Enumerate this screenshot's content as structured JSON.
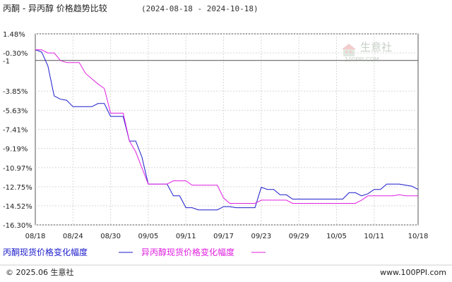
{
  "header": {
    "title": "丙酮 - 异丙醇 价格趋势比较",
    "range": "(2024-08-18 - 2024-10-18)"
  },
  "watermark": {
    "name": "生意社",
    "url": "100PPI.COM"
  },
  "footer": {
    "left": "© 2025.06 生意社",
    "right": "www.100PPI.com"
  },
  "colors": {
    "series1": "#1a1acc",
    "series2": "#e020e0",
    "max_label": "#e03030",
    "min_label": "#e03030",
    "grid": "#d8d8d8"
  },
  "chart_data": {
    "type": "line",
    "x_labels": [
      "08/18",
      "08/24",
      "08/30",
      "09/05",
      "09/11",
      "09/17",
      "09/23",
      "09/29",
      "10/05",
      "10/11",
      "10/18"
    ],
    "x_range": [
      "2024-08-18",
      "2024-10-18"
    ],
    "y_ticks": [
      "1.48%",
      "-0.30%",
      "-1",
      "-3.85%",
      "-5.63%",
      "-7.41%",
      "-9.19%",
      "-10.97%",
      "-12.75%",
      "-14.52%",
      "-16.30%"
    ],
    "y_tick_values": [
      1.48,
      -0.3,
      -1,
      -3.85,
      -5.63,
      -7.41,
      -9.19,
      -10.97,
      -12.75,
      -14.52,
      -16.3
    ],
    "ylim": [
      -16.3,
      1.48
    ],
    "reference_line": -1,
    "grid": true,
    "legend_placement": "bottom-left",
    "series": [
      {
        "name": "丙酮现货价格变化幅度",
        "points": [
          [
            "2024-08-18",
            0
          ],
          [
            "2024-08-19",
            -0.2
          ],
          [
            "2024-08-20",
            -1.5
          ],
          [
            "2024-08-21",
            -4.3
          ],
          [
            "2024-08-22",
            -4.6
          ],
          [
            "2024-08-23",
            -4.7
          ],
          [
            "2024-08-24",
            -5.3
          ],
          [
            "2024-08-25",
            -5.3
          ],
          [
            "2024-08-26",
            -5.3
          ],
          [
            "2024-08-27",
            -5.3
          ],
          [
            "2024-08-28",
            -5.0
          ],
          [
            "2024-08-29",
            -5.0
          ],
          [
            "2024-08-30",
            -6.2
          ],
          [
            "2024-08-31",
            -6.2
          ],
          [
            "2024-09-01",
            -6.2
          ],
          [
            "2024-09-02",
            -8.5
          ],
          [
            "2024-09-03",
            -8.5
          ],
          [
            "2024-09-04",
            -10.0
          ],
          [
            "2024-09-05",
            -12.5
          ],
          [
            "2024-09-06",
            -12.5
          ],
          [
            "2024-09-07",
            -12.5
          ],
          [
            "2024-09-08",
            -12.5
          ],
          [
            "2024-09-09",
            -13.6
          ],
          [
            "2024-09-10",
            -13.6
          ],
          [
            "2024-09-11",
            -14.7
          ],
          [
            "2024-09-12",
            -14.7
          ],
          [
            "2024-09-13",
            -14.9
          ],
          [
            "2024-09-14",
            -14.9
          ],
          [
            "2024-09-15",
            -14.9
          ],
          [
            "2024-09-16",
            -14.9
          ],
          [
            "2024-09-17",
            -14.6
          ],
          [
            "2024-09-18",
            -14.6
          ],
          [
            "2024-09-19",
            -14.7
          ],
          [
            "2024-09-20",
            -14.7
          ],
          [
            "2024-09-21",
            -14.7
          ],
          [
            "2024-09-22",
            -14.7
          ],
          [
            "2024-09-23",
            -12.8
          ],
          [
            "2024-09-24",
            -13.0
          ],
          [
            "2024-09-25",
            -13.0
          ],
          [
            "2024-09-26",
            -13.5
          ],
          [
            "2024-09-27",
            -13.5
          ],
          [
            "2024-09-28",
            -13.9
          ],
          [
            "2024-09-29",
            -13.9
          ],
          [
            "2024-09-30",
            -13.9
          ],
          [
            "2024-10-01",
            -13.9
          ],
          [
            "2024-10-02",
            -13.9
          ],
          [
            "2024-10-03",
            -13.9
          ],
          [
            "2024-10-04",
            -13.9
          ],
          [
            "2024-10-05",
            -13.9
          ],
          [
            "2024-10-06",
            -13.9
          ],
          [
            "2024-10-07",
            -13.3
          ],
          [
            "2024-10-08",
            -13.3
          ],
          [
            "2024-10-09",
            -13.6
          ],
          [
            "2024-10-10",
            -13.4
          ],
          [
            "2024-10-11",
            -13.0
          ],
          [
            "2024-10-12",
            -13.0
          ],
          [
            "2024-10-13",
            -12.5
          ],
          [
            "2024-10-14",
            -12.5
          ],
          [
            "2024-10-15",
            -12.5
          ],
          [
            "2024-10-16",
            -12.6
          ],
          [
            "2024-10-17",
            -12.7
          ],
          [
            "2024-10-18",
            -13.0
          ]
        ]
      },
      {
        "name": "异丙醇现货价格变化幅度",
        "points": [
          [
            "2024-08-18",
            0
          ],
          [
            "2024-08-19",
            0
          ],
          [
            "2024-08-20",
            -0.3
          ],
          [
            "2024-08-21",
            -0.3
          ],
          [
            "2024-08-22",
            -1.0
          ],
          [
            "2024-08-23",
            -1.2
          ],
          [
            "2024-08-24",
            -1.2
          ],
          [
            "2024-08-25",
            -1.2
          ],
          [
            "2024-08-26",
            -2.2
          ],
          [
            "2024-08-27",
            -2.7
          ],
          [
            "2024-08-28",
            -3.2
          ],
          [
            "2024-08-29",
            -3.6
          ],
          [
            "2024-08-30",
            -5.9
          ],
          [
            "2024-08-31",
            -5.9
          ],
          [
            "2024-09-01",
            -5.9
          ],
          [
            "2024-09-02",
            -8.5
          ],
          [
            "2024-09-03",
            -9.5
          ],
          [
            "2024-09-04",
            -11.0
          ],
          [
            "2024-09-05",
            -12.5
          ],
          [
            "2024-09-06",
            -12.5
          ],
          [
            "2024-09-07",
            -12.5
          ],
          [
            "2024-09-08",
            -12.5
          ],
          [
            "2024-09-09",
            -12.2
          ],
          [
            "2024-09-10",
            -12.2
          ],
          [
            "2024-09-11",
            -12.2
          ],
          [
            "2024-09-12",
            -12.6
          ],
          [
            "2024-09-13",
            -12.6
          ],
          [
            "2024-09-14",
            -12.6
          ],
          [
            "2024-09-15",
            -12.6
          ],
          [
            "2024-09-16",
            -12.6
          ],
          [
            "2024-09-17",
            -13.8
          ],
          [
            "2024-09-18",
            -14.3
          ],
          [
            "2024-09-19",
            -14.3
          ],
          [
            "2024-09-20",
            -14.3
          ],
          [
            "2024-09-21",
            -14.3
          ],
          [
            "2024-09-22",
            -14.3
          ],
          [
            "2024-09-23",
            -14.0
          ],
          [
            "2024-09-24",
            -14.0
          ],
          [
            "2024-09-25",
            -14.0
          ],
          [
            "2024-09-26",
            -14.0
          ],
          [
            "2024-09-27",
            -14.0
          ],
          [
            "2024-09-28",
            -14.3
          ],
          [
            "2024-09-29",
            -14.3
          ],
          [
            "2024-09-30",
            -14.3
          ],
          [
            "2024-10-01",
            -14.3
          ],
          [
            "2024-10-02",
            -14.3
          ],
          [
            "2024-10-03",
            -14.3
          ],
          [
            "2024-10-04",
            -14.3
          ],
          [
            "2024-10-05",
            -14.3
          ],
          [
            "2024-10-06",
            -14.3
          ],
          [
            "2024-10-07",
            -14.3
          ],
          [
            "2024-10-08",
            -14.3
          ],
          [
            "2024-10-09",
            -14.0
          ],
          [
            "2024-10-10",
            -13.6
          ],
          [
            "2024-10-11",
            -13.6
          ],
          [
            "2024-10-12",
            -13.6
          ],
          [
            "2024-10-13",
            -13.6
          ],
          [
            "2024-10-14",
            -13.6
          ],
          [
            "2024-10-15",
            -13.5
          ],
          [
            "2024-10-16",
            -13.6
          ],
          [
            "2024-10-17",
            -13.6
          ],
          [
            "2024-10-18",
            -13.6
          ]
        ]
      }
    ]
  }
}
